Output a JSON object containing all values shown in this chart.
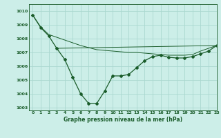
{
  "title": "Graphe pression niveau de la mer (hPa)",
  "background_color": "#cceee8",
  "grid_color": "#aad8d0",
  "line_color": "#1a5c2a",
  "xlim": [
    -0.5,
    23
  ],
  "ylim": [
    1002.8,
    1010.5
  ],
  "yticks": [
    1003,
    1004,
    1005,
    1006,
    1007,
    1008,
    1009,
    1010
  ],
  "xticks": [
    0,
    1,
    2,
    3,
    4,
    5,
    6,
    7,
    8,
    9,
    10,
    11,
    12,
    13,
    14,
    15,
    16,
    17,
    18,
    19,
    20,
    21,
    22,
    23
  ],
  "series1_x": [
    0,
    1,
    2,
    3,
    4,
    5,
    6,
    7,
    8,
    9,
    10,
    11,
    12,
    13,
    14,
    15,
    16,
    17,
    18,
    19,
    20,
    21,
    22,
    23
  ],
  "series1_y": [
    1009.7,
    1008.8,
    1008.2,
    1007.3,
    1006.5,
    1005.2,
    1004.0,
    1003.3,
    1003.3,
    1004.2,
    1005.3,
    1005.3,
    1005.4,
    1005.9,
    1006.4,
    1006.7,
    1006.8,
    1006.65,
    1006.6,
    1006.6,
    1006.7,
    1006.9,
    1007.1,
    1007.5
  ],
  "series2_x": [
    3,
    23
  ],
  "series2_y": [
    1007.3,
    1007.5
  ],
  "series3_x": [
    0,
    1,
    2,
    3,
    4,
    5,
    6,
    7,
    8,
    9,
    10,
    11,
    12,
    13,
    14,
    15,
    16,
    17,
    18,
    19,
    20,
    21,
    22,
    23
  ],
  "series3_y": [
    1009.7,
    1008.85,
    1008.3,
    1008.1,
    1007.9,
    1007.7,
    1007.5,
    1007.35,
    1007.2,
    1007.15,
    1007.1,
    1007.05,
    1007.0,
    1007.0,
    1006.95,
    1006.9,
    1006.85,
    1006.8,
    1006.8,
    1006.8,
    1006.85,
    1007.1,
    1007.3,
    1007.5
  ],
  "title_fontsize": 5.5,
  "tick_fontsize": 4.5,
  "linewidth1": 0.9,
  "linewidth2": 0.7,
  "markersize": 2.0
}
